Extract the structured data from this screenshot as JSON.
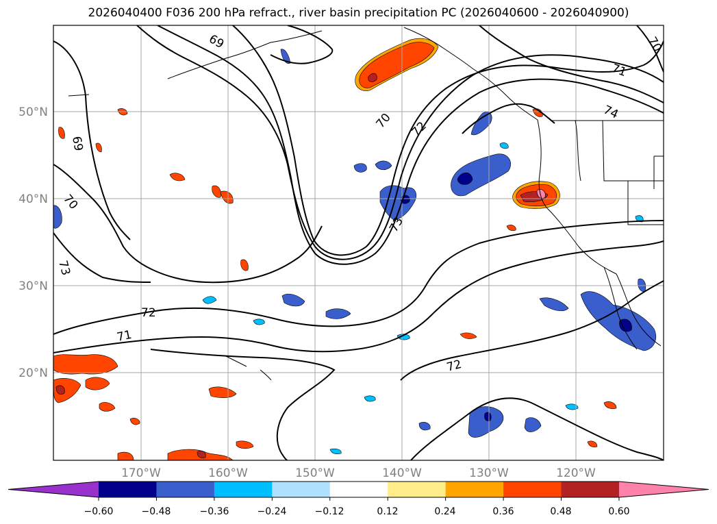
{
  "title": "2026040400 F036 200 hPa refract., river basin precipitation PC (2026040600 - 2026040900)",
  "map": {
    "longitude_labels": [
      "170°W",
      "160°W",
      "150°W",
      "140°W",
      "130°W",
      "120°W"
    ],
    "latitude_labels": [
      "50°N",
      "40°N",
      "30°N",
      "20°N"
    ],
    "contour_labels": [
      "69",
      "69",
      "70",
      "70",
      "70",
      "71",
      "71",
      "72",
      "72",
      "72",
      "73",
      "73",
      "74"
    ],
    "gridline_color": "#a6a6a6",
    "contour_color": "#000000"
  },
  "colorbar": {
    "tick_labels": [
      "−0.60",
      "−0.48",
      "−0.36",
      "−0.24",
      "−0.12",
      "0.12",
      "0.24",
      "0.36",
      "0.48",
      "0.60"
    ],
    "colors": [
      "#9932cc",
      "#00008b",
      "#3a5fcd",
      "#00bfff",
      "#b0e2ff",
      "#ffffff",
      "#ffec8b",
      "#ffa500",
      "#ff4500",
      "#b22222",
      "#ff82ab"
    ],
    "extend": "both"
  }
}
